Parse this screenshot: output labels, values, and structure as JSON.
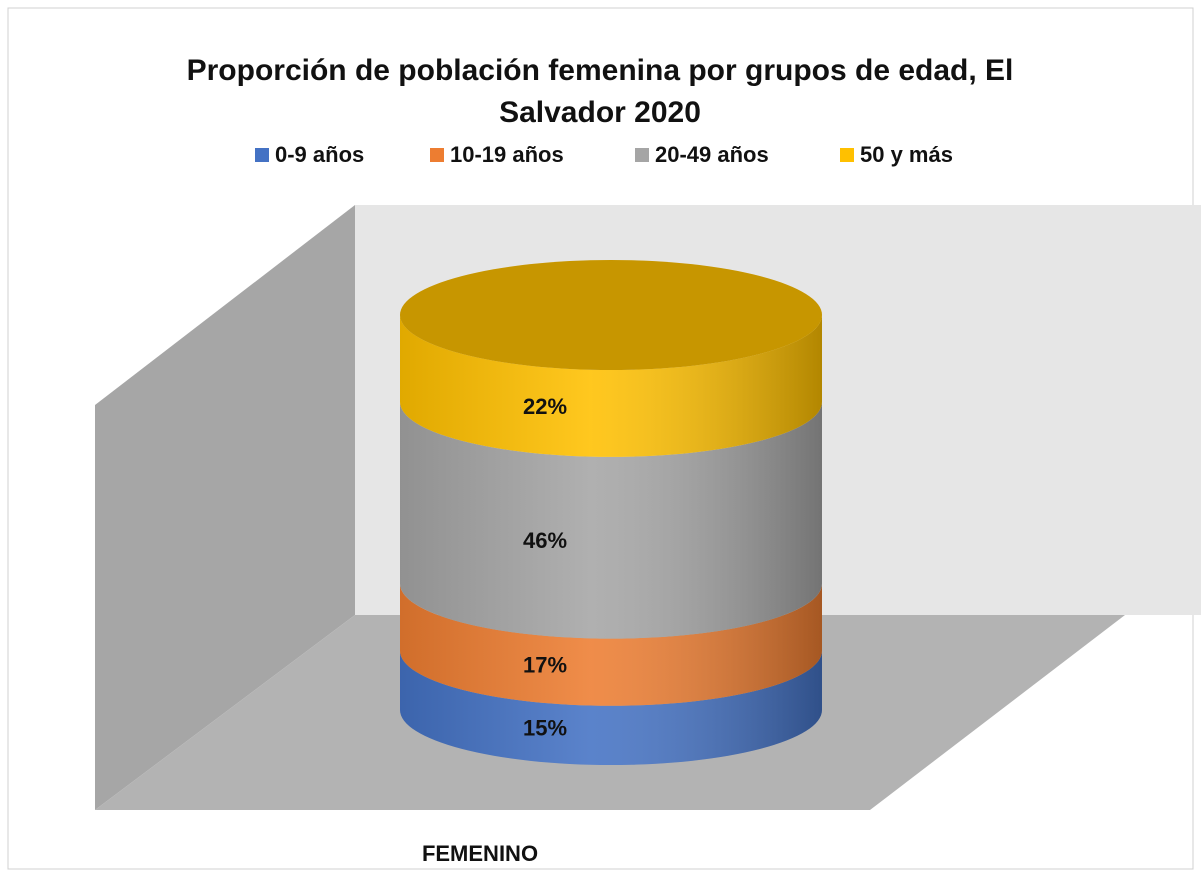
{
  "chart_data": {
    "type": "bar",
    "stacked": true,
    "title": "Proporción de población femenina por grupos de edad, El Salvador 2020",
    "categories": [
      "FEMENINO"
    ],
    "series": [
      {
        "name": "0-9 años",
        "color": "#4472c4",
        "values": [
          15
        ],
        "value_labels": [
          "15%"
        ]
      },
      {
        "name": "10-19 años",
        "color": "#ed7d31",
        "values": [
          17
        ],
        "value_labels": [
          "17%"
        ]
      },
      {
        "name": "20-49 años",
        "color": "#a5a5a5",
        "values": [
          46
        ],
        "value_labels": [
          "46%"
        ]
      },
      {
        "name": "50 y más",
        "color": "#ffc000",
        "values": [
          22
        ],
        "value_labels": [
          "22%"
        ]
      }
    ],
    "legend": "top"
  }
}
